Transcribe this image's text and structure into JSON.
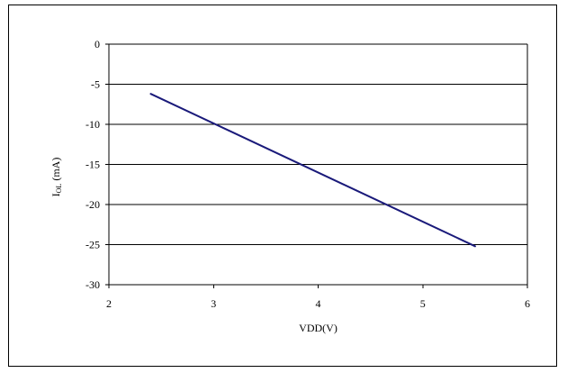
{
  "chart_data": {
    "type": "line",
    "title": "",
    "xlabel": "VDD(V)",
    "ylabel": {
      "main": "I",
      "sub": "OL",
      "unit": " (mA)"
    },
    "xlim": [
      2,
      6
    ],
    "ylim": [
      -30,
      0
    ],
    "x_ticks": [
      2,
      3,
      4,
      5,
      6
    ],
    "y_ticks": [
      0,
      -5,
      -10,
      -15,
      -20,
      -25,
      -30
    ],
    "grid": "horizontal",
    "legend": "none",
    "series": [
      {
        "color": "#1a1a7a",
        "x": [
          2.4,
          5.5
        ],
        "y": [
          -6.2,
          -25.2
        ]
      }
    ]
  }
}
